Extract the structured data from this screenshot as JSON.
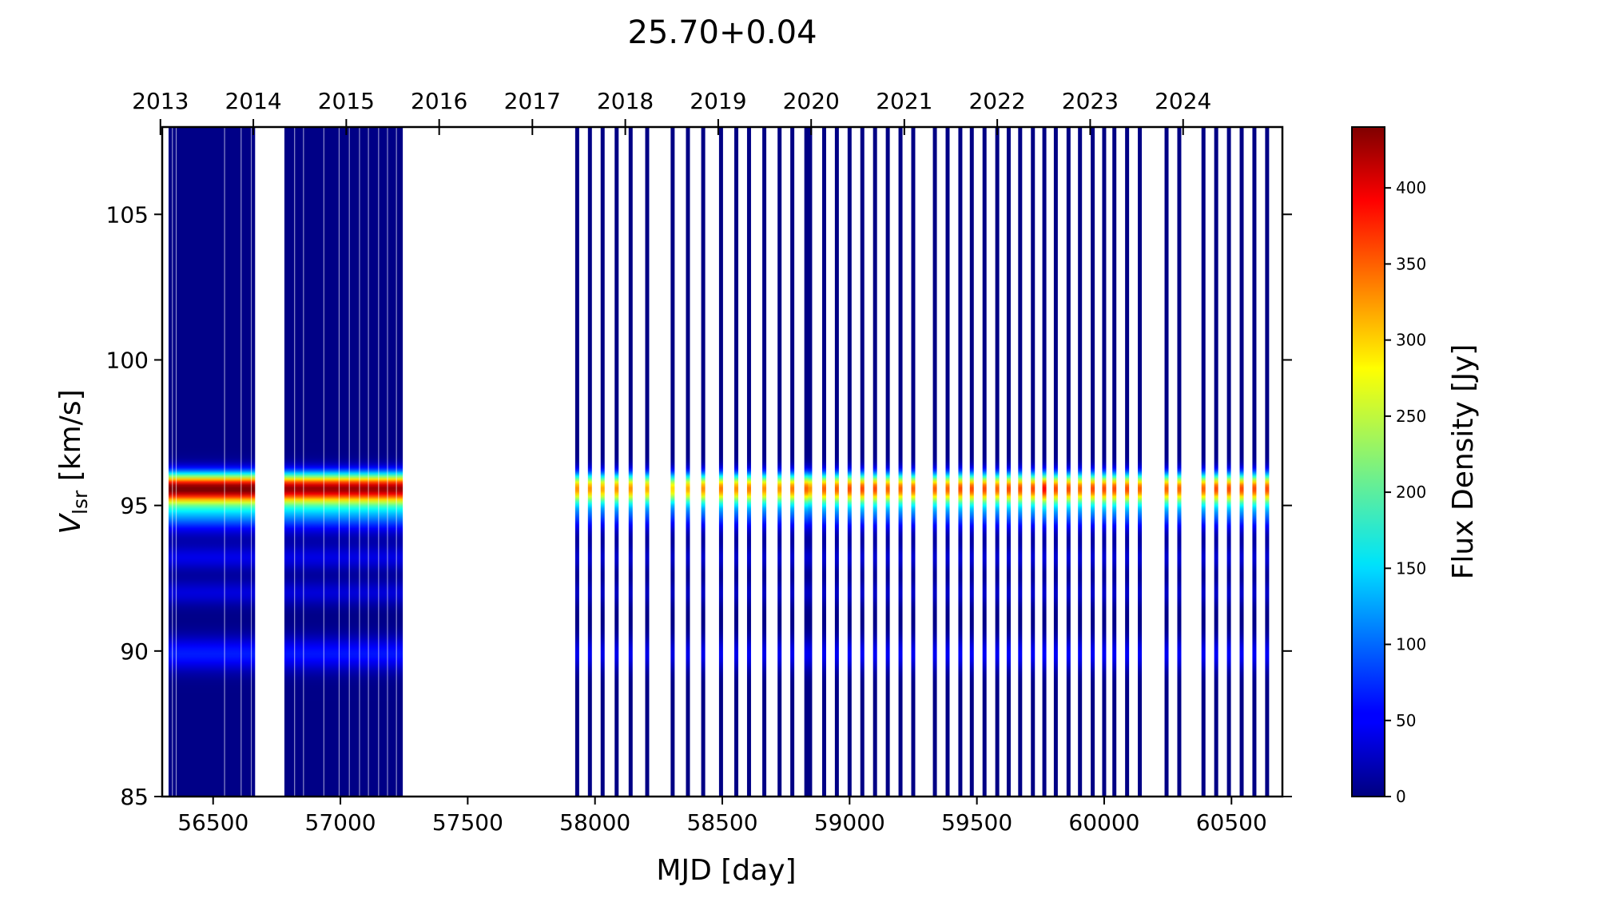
{
  "chart_data": {
    "type": "heatmap",
    "title": "25.70+0.04",
    "xlabel": "MJD [day]",
    "ylabel_main": "V",
    "ylabel_sub": "lsr",
    "ylabel_rest": " [km/s]",
    "xlim": [
      56300,
      60700
    ],
    "ylim": [
      85,
      108
    ],
    "x_ticks": [
      56500,
      57000,
      57500,
      58000,
      58500,
      59000,
      59500,
      60000,
      60500
    ],
    "x_tick_labels": [
      "56500",
      "57000",
      "57500",
      "58000",
      "58500",
      "59000",
      "59500",
      "60000",
      "60500"
    ],
    "y_ticks": [
      85,
      90,
      95,
      100,
      105
    ],
    "y_tick_labels": [
      "85",
      "90",
      "95",
      "100",
      "105"
    ],
    "top_axis_years": [
      {
        "label": "2013",
        "mjd": 56293
      },
      {
        "label": "2014",
        "mjd": 56658
      },
      {
        "label": "2015",
        "mjd": 57023
      },
      {
        "label": "2016",
        "mjd": 57388
      },
      {
        "label": "2017",
        "mjd": 57754
      },
      {
        "label": "2018",
        "mjd": 58119
      },
      {
        "label": "2019",
        "mjd": 58484
      },
      {
        "label": "2020",
        "mjd": 58849
      },
      {
        "label": "2021",
        "mjd": 59215
      },
      {
        "label": "2022",
        "mjd": 59580
      },
      {
        "label": "2023",
        "mjd": 59945
      },
      {
        "label": "2024",
        "mjd": 60310
      }
    ],
    "colorbar": {
      "label": "Flux Density [Jy]",
      "min": 0,
      "max": 440,
      "ticks": [
        0,
        50,
        100,
        150,
        200,
        250,
        300,
        350,
        400
      ],
      "tick_labels": [
        "0",
        "50",
        "100",
        "150",
        "200",
        "250",
        "300",
        "350",
        "400"
      ],
      "colormap": "jet"
    },
    "dense_blocks": [
      {
        "mjd_start": 56325,
        "mjd_end": 56665,
        "peak_velocity": 95.6,
        "peak_flux": 420
      },
      {
        "mjd_start": 56780,
        "mjd_end": 57245,
        "peak_velocity": 95.6,
        "peak_flux": 400
      }
    ],
    "block_gaps_mjd": [
      56340,
      56355,
      56545,
      56610,
      56650,
      56820,
      56855,
      56935,
      56995,
      57035,
      57075,
      57110,
      57150,
      57185,
      57220
    ],
    "spectral_components": [
      {
        "velocity": 95.6,
        "width": 0.35,
        "flux": 400
      },
      {
        "velocity": 94.8,
        "width": 0.45,
        "flux": 120
      },
      {
        "velocity": 93.2,
        "width": 0.3,
        "flux": 40
      },
      {
        "velocity": 92.0,
        "width": 0.3,
        "flux": 35
      },
      {
        "velocity": 89.9,
        "width": 0.4,
        "flux": 60
      }
    ],
    "sparse_observations_mjd": [
      57930,
      57980,
      58030,
      58085,
      58140,
      58205,
      58305,
      58365,
      58425,
      58495,
      58555,
      58605,
      58665,
      58725,
      58775,
      58830,
      58845,
      58900,
      58950,
      59000,
      59050,
      59100,
      59150,
      59200,
      59250,
      59335,
      59385,
      59435,
      59480,
      59530,
      59580,
      59625,
      59670,
      59720,
      59765,
      59810,
      59860,
      59905,
      59955,
      60000,
      60040,
      60090,
      60140,
      60245,
      60295,
      60390,
      60440,
      60490,
      60540,
      60590,
      60640
    ],
    "sparse_peak_flux": [
      300,
      300,
      290,
      300,
      300,
      290,
      270,
      290,
      300,
      310,
      300,
      310,
      300,
      300,
      310,
      320,
      300,
      320,
      320,
      330,
      330,
      330,
      320,
      320,
      320,
      320,
      320,
      330,
      330,
      330,
      320,
      330,
      330,
      330,
      360,
      330,
      330,
      320,
      330,
      330,
      330,
      330,
      320,
      320,
      320,
      320,
      330,
      330,
      330,
      330,
      330
    ]
  }
}
